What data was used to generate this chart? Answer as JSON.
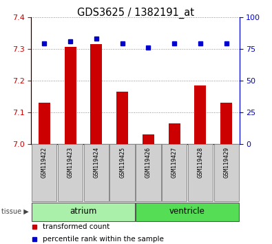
{
  "title": "GDS3625 / 1382191_at",
  "samples": [
    "GSM119422",
    "GSM119423",
    "GSM119424",
    "GSM119425",
    "GSM119426",
    "GSM119427",
    "GSM119428",
    "GSM119429"
  ],
  "bar_values": [
    7.13,
    7.305,
    7.315,
    7.165,
    7.03,
    7.065,
    7.185,
    7.13
  ],
  "percentile_values": [
    79,
    81,
    83,
    79,
    76,
    79,
    79,
    79
  ],
  "bar_color": "#cc0000",
  "percentile_color": "#0000cc",
  "ylim_left": [
    7.0,
    7.4
  ],
  "ylim_right": [
    0,
    100
  ],
  "yticks_left": [
    7.0,
    7.1,
    7.2,
    7.3,
    7.4
  ],
  "yticks_right": [
    0,
    25,
    50,
    75,
    100
  ],
  "tissue_groups": [
    {
      "label": "atrium",
      "start": 0,
      "end": 3,
      "color": "#aaf0aa"
    },
    {
      "label": "ventricle",
      "start": 4,
      "end": 7,
      "color": "#55dd55"
    }
  ],
  "tissue_label": "tissue",
  "legend_items": [
    {
      "label": "transformed count",
      "color": "#cc0000"
    },
    {
      "label": "percentile rank within the sample",
      "color": "#0000cc"
    }
  ],
  "base_value": 7.0,
  "fig_width": 3.95,
  "fig_height": 3.54,
  "dpi": 100
}
